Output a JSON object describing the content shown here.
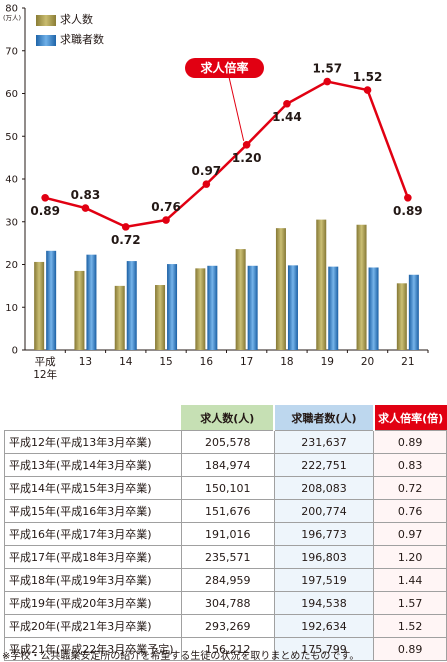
{
  "chart_data": {
    "type": "bar",
    "unit_label": "(万人)",
    "ylim": [
      0,
      80
    ],
    "yticks": [
      "0",
      "10",
      "20",
      "30",
      "40",
      "50",
      "60",
      "70",
      "80"
    ],
    "categories": [
      "平成12年",
      "13",
      "14",
      "15",
      "16",
      "17",
      "18",
      "19",
      "20",
      "21"
    ],
    "series": [
      {
        "name": "求人数",
        "values": [
          20.6,
          18.5,
          15.0,
          15.2,
          19.1,
          23.6,
          28.5,
          30.5,
          29.3,
          15.6
        ],
        "color": "#a89a4e"
      },
      {
        "name": "求職者数",
        "values": [
          23.2,
          22.3,
          20.8,
          20.1,
          19.7,
          19.7,
          19.8,
          19.5,
          19.3,
          17.6
        ],
        "color": "#2f7ec4"
      }
    ],
    "line": {
      "name": "求人倍率",
      "values": [
        0.89,
        0.83,
        0.72,
        0.76,
        0.97,
        1.2,
        1.44,
        1.57,
        1.52,
        0.89
      ],
      "labels": [
        "0.89",
        "0.83",
        "0.72",
        "0.76",
        "0.97",
        "1.20",
        "1.44",
        "1.57",
        "1.52",
        "0.89"
      ],
      "color": "#e10012"
    },
    "legend_position": "top-left"
  },
  "legend": {
    "job_openings": "求人数",
    "job_seekers": "求職者数"
  },
  "callout": "求人倍率",
  "table": {
    "headers": {
      "openings": "求人数(人)",
      "seekers": "求職者数(人)",
      "ratio": "求人倍率(倍)"
    },
    "rows": [
      {
        "year": "平成12年(平成13年3月卒業)",
        "openings": "205,578",
        "seekers": "231,637",
        "ratio": "0.89"
      },
      {
        "year": "平成13年(平成14年3月卒業)",
        "openings": "184,974",
        "seekers": "222,751",
        "ratio": "0.83"
      },
      {
        "year": "平成14年(平成15年3月卒業)",
        "openings": "150,101",
        "seekers": "208,083",
        "ratio": "0.72"
      },
      {
        "year": "平成15年(平成16年3月卒業)",
        "openings": "151,676",
        "seekers": "200,774",
        "ratio": "0.76"
      },
      {
        "year": "平成16年(平成17年3月卒業)",
        "openings": "191,016",
        "seekers": "196,773",
        "ratio": "0.97"
      },
      {
        "year": "平成17年(平成18年3月卒業)",
        "openings": "235,571",
        "seekers": "196,803",
        "ratio": "1.20"
      },
      {
        "year": "平成18年(平成19年3月卒業)",
        "openings": "284,959",
        "seekers": "197,519",
        "ratio": "1.44"
      },
      {
        "year": "平成19年(平成20年3月卒業)",
        "openings": "304,788",
        "seekers": "194,538",
        "ratio": "1.57"
      },
      {
        "year": "平成20年(平成21年3月卒業)",
        "openings": "293,269",
        "seekers": "192,634",
        "ratio": "1.52"
      },
      {
        "year": "平成21年(平成22年3月卒業予定)",
        "openings": "156,212",
        "seekers": "175,799",
        "ratio": "0.89"
      }
    ]
  },
  "footnote": "※学校・公共職業安定所の紹介を希望する生徒の状況を取りまとめたものです。"
}
